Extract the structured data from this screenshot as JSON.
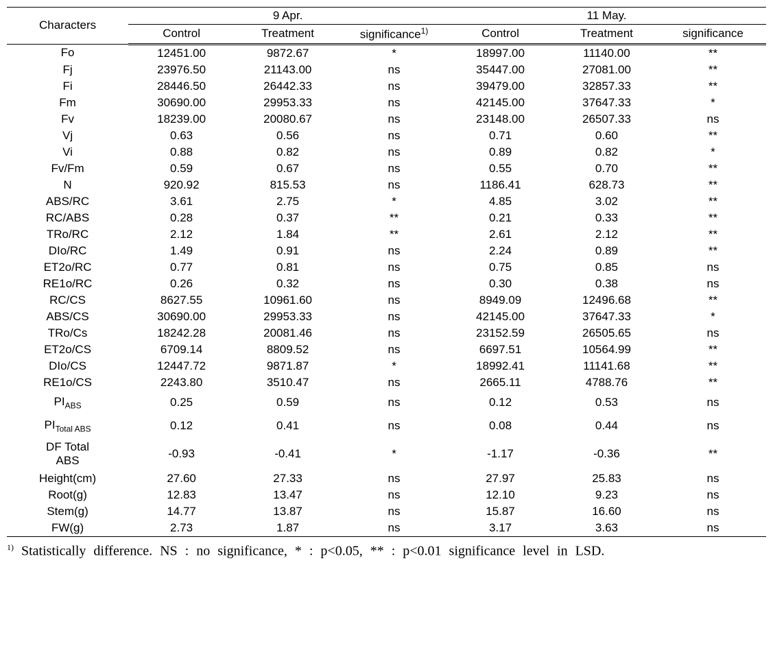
{
  "table": {
    "header1": {
      "characters": "Characters",
      "date1": "9 Apr.",
      "date2": "11 May."
    },
    "header2": {
      "control": "Control",
      "treatment": "Treatment",
      "significance": "significance",
      "sig_sup": "1)"
    },
    "rows": [
      {
        "char": "Fo",
        "c1": "12451.00",
        "t1": "9872.67",
        "s1": "*",
        "c2": "18997.00",
        "t2": "11140.00",
        "s2": "**"
      },
      {
        "char": "Fj",
        "c1": "23976.50",
        "t1": "21143.00",
        "s1": "ns",
        "c2": "35447.00",
        "t2": "27081.00",
        "s2": "**"
      },
      {
        "char": "Fi",
        "c1": "28446.50",
        "t1": "26442.33",
        "s1": "ns",
        "c2": "39479.00",
        "t2": "32857.33",
        "s2": "**"
      },
      {
        "char": "Fm",
        "c1": "30690.00",
        "t1": "29953.33",
        "s1": "ns",
        "c2": "42145.00",
        "t2": "37647.33",
        "s2": "*"
      },
      {
        "char": "Fv",
        "c1": "18239.00",
        "t1": "20080.67",
        "s1": "ns",
        "c2": "23148.00",
        "t2": "26507.33",
        "s2": "ns"
      },
      {
        "char": "Vj",
        "c1": "0.63",
        "t1": "0.56",
        "s1": "ns",
        "c2": "0.71",
        "t2": "0.60",
        "s2": "**"
      },
      {
        "char": "Vi",
        "c1": "0.88",
        "t1": "0.82",
        "s1": "ns",
        "c2": "0.89",
        "t2": "0.82",
        "s2": "*"
      },
      {
        "char": "Fv/Fm",
        "c1": "0.59",
        "t1": "0.67",
        "s1": "ns",
        "c2": "0.55",
        "t2": "0.70",
        "s2": "**"
      },
      {
        "char": "N",
        "c1": "920.92",
        "t1": "815.53",
        "s1": "ns",
        "c2": "1186.41",
        "t2": "628.73",
        "s2": "**"
      },
      {
        "char": "ABS/RC",
        "c1": "3.61",
        "t1": "2.75",
        "s1": "*",
        "c2": "4.85",
        "t2": "3.02",
        "s2": "**"
      },
      {
        "char": "RC/ABS",
        "c1": "0.28",
        "t1": "0.37",
        "s1": "**",
        "c2": "0.21",
        "t2": "0.33",
        "s2": "**"
      },
      {
        "char": "TRo/RC",
        "c1": "2.12",
        "t1": "1.84",
        "s1": "**",
        "c2": "2.61",
        "t2": "2.12",
        "s2": "**"
      },
      {
        "char": "DIo/RC",
        "c1": "1.49",
        "t1": "0.91",
        "s1": "ns",
        "c2": "2.24",
        "t2": "0.89",
        "s2": "**"
      },
      {
        "char": "ET2o/RC",
        "c1": "0.77",
        "t1": "0.81",
        "s1": "ns",
        "c2": "0.75",
        "t2": "0.85",
        "s2": "ns"
      },
      {
        "char": "RE1o/RC",
        "c1": "0.26",
        "t1": "0.32",
        "s1": "ns",
        "c2": "0.30",
        "t2": "0.38",
        "s2": "ns"
      },
      {
        "char": "RC/CS",
        "c1": "8627.55",
        "t1": "10961.60",
        "s1": "ns",
        "c2": "8949.09",
        "t2": "12496.68",
        "s2": "**"
      },
      {
        "char": "ABS/CS",
        "c1": "30690.00",
        "t1": "29953.33",
        "s1": "ns",
        "c2": "42145.00",
        "t2": "37647.33",
        "s2": "*"
      },
      {
        "char": "TRo/Cs",
        "c1": "18242.28",
        "t1": "20081.46",
        "s1": "ns",
        "c2": "23152.59",
        "t2": "26505.65",
        "s2": "ns"
      },
      {
        "char": "ET2o/CS",
        "c1": "6709.14",
        "t1": "8809.52",
        "s1": "ns",
        "c2": "6697.51",
        "t2": "10564.99",
        "s2": "**"
      },
      {
        "char": "DIo/CS",
        "c1": "12447.72",
        "t1": "9871.87",
        "s1": "*",
        "c2": "18992.41",
        "t2": "11141.68",
        "s2": "**"
      },
      {
        "char": "RE1o/CS",
        "c1": "2243.80",
        "t1": "3510.47",
        "s1": "ns",
        "c2": "2665.11",
        "t2": "4788.76",
        "s2": "**"
      },
      {
        "char": "PI",
        "char_sub": "ABS",
        "c1": "0.25",
        "t1": "0.59",
        "s1": "ns",
        "c2": "0.12",
        "t2": "0.53",
        "s2": "ns",
        "pad": true
      },
      {
        "char": "PI",
        "char_sub": "Total ABS",
        "c1": "0.12",
        "t1": "0.41",
        "s1": "ns",
        "c2": "0.08",
        "t2": "0.44",
        "s2": "ns",
        "pad": true
      },
      {
        "char": "DF Total ABS",
        "c1": "-0.93",
        "t1": "-0.41",
        "s1": "*",
        "c2": "-1.17",
        "t2": "-0.36",
        "s2": "**",
        "multiline": true
      },
      {
        "char": "Height(cm)",
        "c1": "27.60",
        "t1": "27.33",
        "s1": "ns",
        "c2": "27.97",
        "t2": "25.83",
        "s2": "ns"
      },
      {
        "char": "Root(g)",
        "c1": "12.83",
        "t1": "13.47",
        "s1": "ns",
        "c2": "12.10",
        "t2": "9.23",
        "s2": "ns"
      },
      {
        "char": "Stem(g)",
        "c1": "14.77",
        "t1": "13.87",
        "s1": "ns",
        "c2": "15.87",
        "t2": "16.60",
        "s2": "ns"
      },
      {
        "char": "FW(g)",
        "c1": "2.73",
        "t1": "1.87",
        "s1": "ns",
        "c2": "3.17",
        "t2": "3.63",
        "s2": "ns"
      }
    ],
    "footnote": {
      "sup": "1)",
      "text": "Statistically difference. NS : no significance, * : p<0.05, ** : p<0.01 significance level in LSD."
    }
  }
}
